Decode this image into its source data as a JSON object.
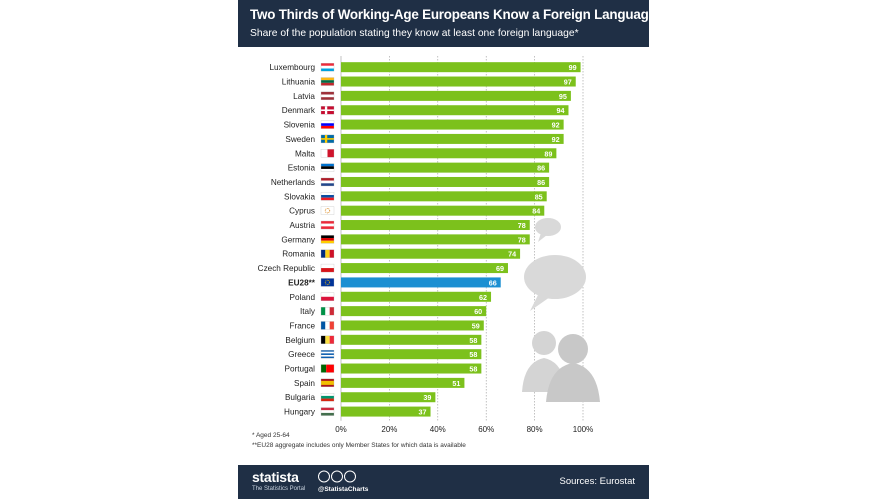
{
  "header": {
    "title": "Two Thirds of Working-Age Europeans Know a Foreign Language",
    "subtitle": "Share of the population stating they know at least one foreign language*"
  },
  "chart_data": {
    "type": "bar",
    "orientation": "horizontal",
    "categories": [
      "Luxembourg",
      "Lithuania",
      "Latvia",
      "Denmark",
      "Slovenia",
      "Sweden",
      "Malta",
      "Estonia",
      "Netherlands",
      "Slovakia",
      "Cyprus",
      "Austria",
      "Germany",
      "Romania",
      "Czech Republic",
      "EU28**",
      "Poland",
      "Italy",
      "France",
      "Belgium",
      "Greece",
      "Portugal",
      "Spain",
      "Bulgaria",
      "Hungary"
    ],
    "values": [
      99,
      97,
      95,
      94,
      92,
      92,
      89,
      86,
      86,
      85,
      84,
      78,
      78,
      74,
      69,
      66,
      62,
      60,
      59,
      58,
      58,
      58,
      51,
      39,
      37
    ],
    "highlight": "EU28**",
    "xlim": [
      0,
      100
    ],
    "xticks": [
      "0%",
      "20%",
      "40%",
      "60%",
      "80%",
      "100%"
    ],
    "grid": "vertical dotted",
    "colors": {
      "bar": "#7cc11c",
      "highlight": "#1b8fd2",
      "label": "#ffffff"
    }
  },
  "footnotes": {
    "note1": "* Aged 25-64",
    "note2": "**EU28 aggregate includes only Member States for which data is available"
  },
  "footer": {
    "brand": "statista",
    "brand_sub": "The Statistics Portal",
    "handle": "@StatistaCharts",
    "source": "Sources: Eurostat"
  },
  "colors": {
    "header_bg": "#1f2f45",
    "footer_bg": "#1f2f45"
  }
}
